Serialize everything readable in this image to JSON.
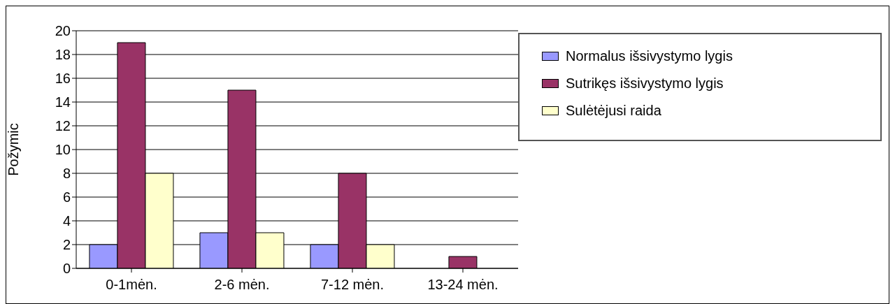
{
  "chart_data": {
    "type": "bar",
    "ylabel": "Požymic",
    "categories": [
      "0-1mėn.",
      "2-6 mėn.",
      "7-12 mėn.",
      "13-24 mėn."
    ],
    "series": [
      {
        "name": "Normalus išsivystymo lygis",
        "color": "#9999ff",
        "values": [
          2,
          3,
          2,
          0
        ]
      },
      {
        "name": "Sutrikęs išsivystymo lygis",
        "color": "#993366",
        "values": [
          19,
          15,
          8,
          1
        ]
      },
      {
        "name": "Sulėtėjusi raida",
        "color": "#ffffcc",
        "values": [
          8,
          3,
          2,
          0
        ]
      }
    ],
    "ylim": [
      0,
      20
    ],
    "yticks": [
      0,
      2,
      4,
      6,
      8,
      10,
      12,
      14,
      16,
      18,
      20
    ],
    "grid": "y",
    "legend": "top right"
  }
}
